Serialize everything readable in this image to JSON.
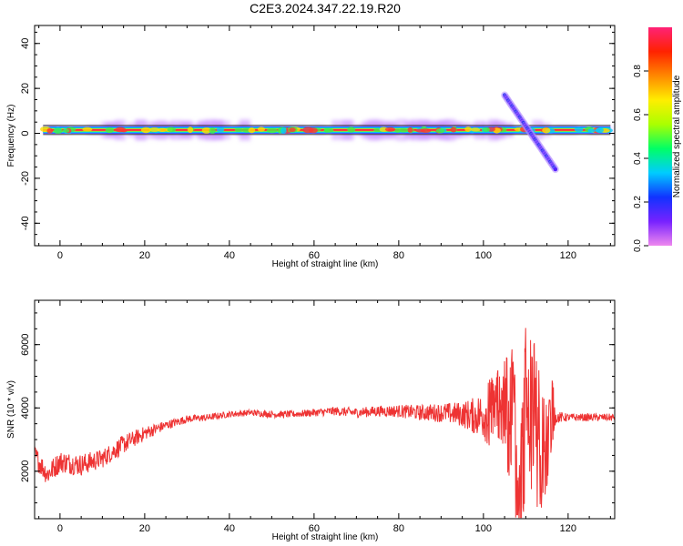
{
  "title": "C2E3.2024.347.22.19.R20",
  "chart_data": [
    {
      "type": "heatmap",
      "xlabel": "Height of straight line (km)",
      "ylabel": "Frequency (Hz)",
      "xlim": [
        -6,
        131
      ],
      "ylim": [
        -50,
        48
      ],
      "xticks": [
        0,
        20,
        40,
        60,
        80,
        100,
        120
      ],
      "yticks": [
        -40,
        -20,
        0,
        20,
        40
      ],
      "grid": false,
      "colorbar": {
        "label": "Normalized spectral amplitude",
        "range": [
          0,
          1
        ],
        "ticks": [
          "0.0",
          "0.2",
          "0.4",
          "0.6",
          "0.8"
        ],
        "colors": [
          "#ee88ee",
          "#7722ff",
          "#1133ff",
          "#00ccff",
          "#00ff66",
          "#aaff00",
          "#ffee00",
          "#ff8800",
          "#ff2200",
          "#ff2277"
        ]
      },
      "features": [
        {
          "kind": "main-band",
          "x_range": [
            -4,
            130
          ],
          "frequency_hz": 1.5,
          "amplitude": 1.0
        },
        {
          "kind": "descending-tone",
          "x_range": [
            105,
            117
          ],
          "frequency_range_hz": [
            17,
            -16
          ],
          "amplitude": 0.2
        }
      ]
    },
    {
      "type": "line",
      "xlabel": "Height of straight line (km)",
      "ylabel": "SNR (10 * v/v)",
      "xlim": [
        -6,
        131
      ],
      "ylim": [
        500,
        7400
      ],
      "xticks": [
        0,
        20,
        40,
        60,
        80,
        100,
        120
      ],
      "yticks": [
        2000,
        4000,
        6000
      ],
      "grid": false,
      "series": [
        {
          "color": "#ee3333",
          "x": [
            -6,
            -3,
            0,
            5,
            10,
            15,
            20,
            25,
            30,
            35,
            40,
            45,
            50,
            55,
            60,
            65,
            70,
            75,
            80,
            85,
            90,
            95,
            98,
            100,
            103,
            105,
            107,
            108,
            110,
            112,
            114,
            116,
            117,
            120,
            125,
            131
          ],
          "values": [
            2500,
            1900,
            2300,
            2200,
            2400,
            2850,
            3200,
            3450,
            3650,
            3700,
            3800,
            3850,
            3800,
            3800,
            3850,
            3900,
            3850,
            3900,
            3900,
            3850,
            3850,
            3800,
            3750,
            3800,
            3850,
            3700,
            3800,
            1200,
            4000,
            3500,
            2500,
            4000,
            3700,
            3700,
            3700,
            3700
          ],
          "noise": [
            350,
            350,
            350,
            350,
            300,
            300,
            220,
            150,
            120,
            110,
            100,
            100,
            110,
            110,
            120,
            140,
            160,
            170,
            200,
            250,
            300,
            400,
            600,
            800,
            1400,
            1800,
            2600,
            2800,
            2600,
            2600,
            2000,
            1500,
            200,
            120,
            120,
            120
          ]
        }
      ]
    }
  ]
}
